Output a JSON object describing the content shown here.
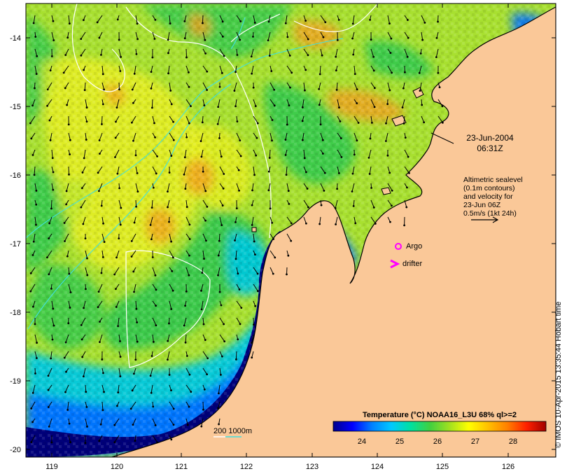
{
  "map": {
    "x_ticks": [
      "119",
      "120",
      "121",
      "122",
      "123",
      "124",
      "125",
      "126"
    ],
    "y_ticks": [
      "-14",
      "-15",
      "-16",
      "-17",
      "-18",
      "-19",
      "-20"
    ],
    "x_range": [
      118.6,
      126.7
    ],
    "y_range": [
      -20.1,
      -13.6
    ]
  },
  "annotations": {
    "date": "23-Jun-2004",
    "time": "06:31Z",
    "altimetry": [
      "Altimetric sealevel",
      "(0.1m contours)",
      "and velocity for",
      "23-Jun 06Z",
      "0.5m/s (1kt 24h)"
    ]
  },
  "legend": {
    "argo": "Argo",
    "drifter": "drifter",
    "depth": "200  1000m"
  },
  "colorbar": {
    "title": "Temperature (°C) NOAA16_L3U 68% ql>=2",
    "ticks": [
      "24",
      "25",
      "26",
      "27",
      "28"
    ],
    "range": [
      23.2,
      28.8
    ],
    "stops": [
      "#00008b",
      "#0000ff",
      "#0080ff",
      "#00c8ff",
      "#00e0a0",
      "#40d040",
      "#a0e020",
      "#ffff00",
      "#ffc000",
      "#ff8000",
      "#ff2000",
      "#a00000"
    ]
  },
  "credit": "© IMOS 10-Apr-2015 13:35:44 Hobart time",
  "colors": {
    "land": "#fac898",
    "deep_blue": "#00007a",
    "blue": "#0070ff",
    "cyan": "#00c8e0",
    "green": "#30c850",
    "yellow_green": "#a8e030",
    "yellow": "#f0f020",
    "orange": "#f0a020",
    "magenta": "#ff00ff",
    "contour_1000m": "#40e0e0"
  }
}
